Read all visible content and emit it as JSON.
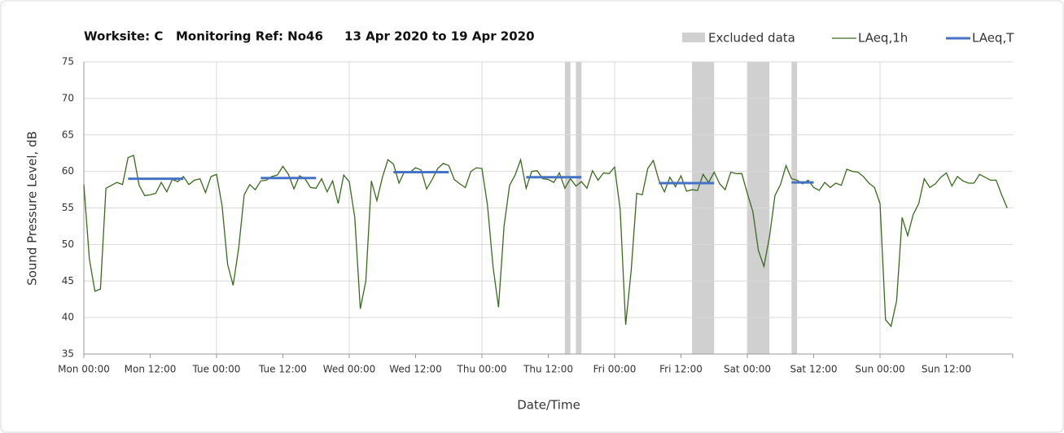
{
  "chart_data": {
    "type": "line",
    "title": "Worksite: C   Monitoring Ref: No46     13 Apr 2020 to 19 Apr 2020",
    "xlabel": "Date/Time",
    "ylabel": "Sound Pressure Level, dB",
    "x": [
      0,
      1,
      2,
      3,
      4,
      5,
      6,
      7,
      8,
      9,
      10,
      11,
      12,
      13,
      14,
      15,
      16,
      17,
      18,
      19,
      20,
      21,
      22,
      23,
      24,
      25,
      26,
      27,
      28,
      29,
      30,
      31,
      32,
      33,
      34,
      35,
      36,
      37,
      38,
      39,
      40,
      41,
      42,
      43,
      44,
      45,
      46,
      47,
      48,
      49,
      50,
      51,
      52,
      53,
      54,
      55,
      56,
      57,
      58,
      59,
      60,
      61,
      62,
      63,
      64,
      65,
      66,
      67,
      68,
      69,
      70,
      71,
      72,
      73,
      74,
      75,
      76,
      77,
      78,
      79,
      80,
      81,
      82,
      83,
      84,
      85,
      86,
      87,
      88,
      89,
      90,
      91,
      92,
      93,
      94,
      95,
      96,
      97,
      98,
      99,
      100,
      101,
      102,
      103,
      104,
      105,
      106,
      107,
      108,
      109,
      110,
      111,
      112,
      113,
      114,
      115,
      116,
      117,
      118,
      119,
      120,
      121,
      122,
      123,
      124,
      125,
      126,
      127,
      128,
      129,
      130,
      131,
      132,
      133,
      134,
      135,
      136,
      137,
      138,
      139,
      140,
      141,
      142,
      143,
      144,
      145,
      146,
      147,
      148,
      149,
      150,
      151,
      152,
      153,
      154,
      155,
      156,
      157,
      158,
      159,
      160,
      161,
      162,
      163,
      164,
      165,
      166,
      167
    ],
    "series": [
      {
        "name": "LAeq,1h",
        "color": "#3b6a1f",
        "values": [
          58.2,
          48,
          43.6,
          43.9,
          57.7,
          58.1,
          58.5,
          58.2,
          61.9,
          62.2,
          58.1,
          56.7,
          56.8,
          57.0,
          58.5,
          57.2,
          58.9,
          58.6,
          59.3,
          58.2,
          58.8,
          59.0,
          57.1,
          59.3,
          59.6,
          55.3,
          47.3,
          44.4,
          49.5,
          56.8,
          58.2,
          57.5,
          58.7,
          58.8,
          59.3,
          59.5,
          60.7,
          59.6,
          57.6,
          59.4,
          59.0,
          57.8,
          57.7,
          59.0,
          57.2,
          58.7,
          55.6,
          59.5,
          58.6,
          53.7,
          41.2,
          45.0,
          58.7,
          56.0,
          59.2,
          61.6,
          61.0,
          58.4,
          60.0,
          59.9,
          60.5,
          60.2,
          57.6,
          58.9,
          60.4,
          61.1,
          60.8,
          58.9,
          58.3,
          57.8,
          60.0,
          60.5,
          60.4,
          55.4,
          47.0,
          41.4,
          52.5,
          58.1,
          59.5,
          61.6,
          57.7,
          60.0,
          60.1,
          59.0,
          58.9,
          58.5,
          59.8,
          57.7,
          59.0,
          58.0,
          58.6,
          57.7,
          60.1,
          58.8,
          59.8,
          59.7,
          60.6,
          54.8,
          39.0,
          46.5,
          57.0,
          56.8,
          60.4,
          61.5,
          58.8,
          57.2,
          59.2,
          57.9,
          59.4,
          57.3,
          57.5,
          57.4,
          59.6,
          58.5,
          59.9,
          58.3,
          57.5,
          59.9,
          59.7,
          59.7,
          57.0,
          54.5,
          49.2,
          47.0,
          51.0,
          56.7,
          58.2,
          60.8,
          59.0,
          58.8,
          58.3,
          58.8,
          57.8,
          57.4,
          58.5,
          57.8,
          58.4,
          58.1,
          60.3,
          60.0,
          59.9,
          59.3,
          58.4,
          57.8,
          55.6,
          39.7,
          38.8,
          42.3,
          53.7,
          51.2,
          54.1,
          55.6,
          59.0,
          57.8,
          58.3,
          59.2,
          59.8,
          58.0,
          59.3,
          58.7,
          58.4,
          58.4,
          59.6,
          59.2,
          58.8,
          58.8,
          56.8,
          55.0
        ]
      },
      {
        "name": "LAeq,T",
        "color": "#4472c4",
        "segments": [
          {
            "x": [
              8,
              18
            ],
            "value": 59.0
          },
          {
            "x": [
              32,
              42
            ],
            "value": 59.1
          },
          {
            "x": [
              56,
              66
            ],
            "value": 59.9
          },
          {
            "x": [
              80,
              90
            ],
            "value": 59.2
          },
          {
            "x": [
              104,
              114
            ],
            "value": 58.4
          },
          {
            "x": [
              128,
              132
            ],
            "value": 58.5
          }
        ]
      }
    ],
    "excluded": {
      "name": "Excluded data",
      "color": "#d0d0d0",
      "ranges": [
        [
          87,
          88
        ],
        [
          89,
          90
        ],
        [
          110,
          114
        ],
        [
          120,
          124
        ],
        [
          128,
          129
        ]
      ]
    },
    "xlim": [
      0,
      168
    ],
    "xticks": [
      {
        "value": 0,
        "label": "Mon 00:00"
      },
      {
        "value": 12,
        "label": "Mon 12:00"
      },
      {
        "value": 24,
        "label": "Tue 00:00"
      },
      {
        "value": 36,
        "label": "Tue 12:00"
      },
      {
        "value": 48,
        "label": "Wed 00:00"
      },
      {
        "value": 60,
        "label": "Wed 12:00"
      },
      {
        "value": 72,
        "label": "Thu 00:00"
      },
      {
        "value": 84,
        "label": "Thu 12:00"
      },
      {
        "value": 96,
        "label": "Fri 00:00"
      },
      {
        "value": 108,
        "label": "Fri 12:00"
      },
      {
        "value": 120,
        "label": "Sat 00:00"
      },
      {
        "value": 132,
        "label": "Sat 12:00"
      },
      {
        "value": 144,
        "label": "Sun 00:00"
      },
      {
        "value": 156,
        "label": "Sun 12:00"
      }
    ],
    "ylim": [
      35,
      75
    ],
    "yticks": [
      35,
      40,
      45,
      50,
      55,
      60,
      65,
      70,
      75
    ],
    "grid": true
  }
}
